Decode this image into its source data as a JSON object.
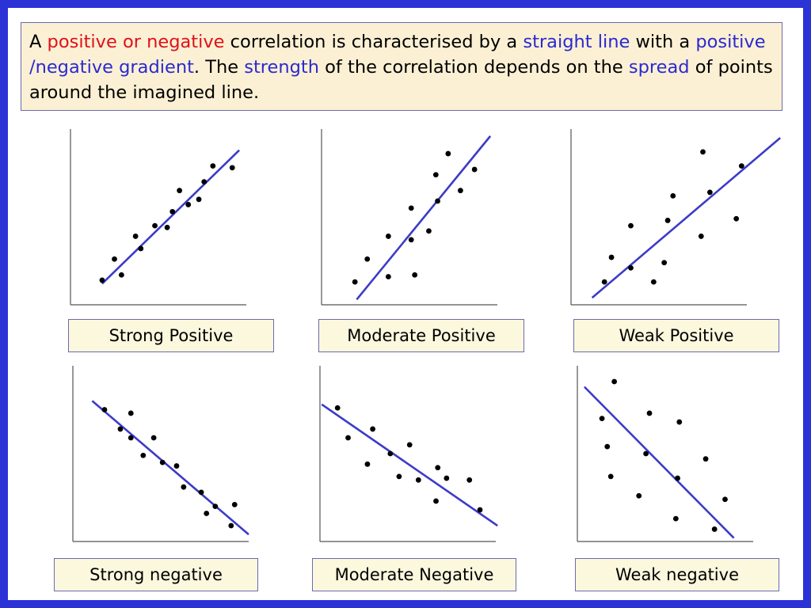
{
  "intro": {
    "p1": "A ",
    "k1": "positive or negative",
    "p2": " correlation is characterised by a ",
    "k2": "straight line",
    "p3": " with a ",
    "k3": "positive /negative gradient",
    "p4": ". The ",
    "k4": "strength",
    "p5": " of the correlation depends on the ",
    "k5": "spread",
    "p6": " of points around the imagined line."
  },
  "colors": {
    "frame": "#2b33d6",
    "line": "#3b3bc8",
    "keyword_red": "#e0101a",
    "keyword_blue": "#2a2ad0",
    "text_box": "#fbf0d4",
    "label_box": "#fbf8de"
  },
  "chart_data": [
    {
      "type": "scatter",
      "label": "Strong Positive",
      "trend": "positive",
      "strength": "strong",
      "x": [
        0.18,
        0.25,
        0.29,
        0.37,
        0.4,
        0.48,
        0.55,
        0.58,
        0.62,
        0.67,
        0.73,
        0.76,
        0.81,
        0.92
      ],
      "y": [
        0.14,
        0.26,
        0.17,
        0.39,
        0.32,
        0.45,
        0.44,
        0.53,
        0.65,
        0.57,
        0.6,
        0.7,
        0.79,
        0.78
      ]
    },
    {
      "type": "scatter",
      "label": "Moderate Positive",
      "trend": "positive",
      "strength": "moderate",
      "x": [
        0.19,
        0.26,
        0.38,
        0.38,
        0.51,
        0.51,
        0.53,
        0.61,
        0.65,
        0.66,
        0.72,
        0.79,
        0.87
      ],
      "y": [
        0.13,
        0.26,
        0.16,
        0.39,
        0.37,
        0.55,
        0.17,
        0.42,
        0.74,
        0.59,
        0.86,
        0.65,
        0.77
      ]
    },
    {
      "type": "scatter",
      "label": "Weak Positive",
      "trend": "positive",
      "strength": "weak",
      "x": [
        0.19,
        0.23,
        0.34,
        0.34,
        0.47,
        0.53,
        0.55,
        0.58,
        0.74,
        0.75,
        0.79,
        0.94,
        0.97
      ],
      "y": [
        0.13,
        0.27,
        0.21,
        0.45,
        0.13,
        0.24,
        0.48,
        0.62,
        0.39,
        0.87,
        0.64,
        0.49,
        0.79
      ]
    },
    {
      "type": "scatter",
      "label": "Strong negative",
      "trend": "negative",
      "strength": "strong",
      "x": [
        0.18,
        0.27,
        0.33,
        0.33,
        0.4,
        0.46,
        0.51,
        0.59,
        0.63,
        0.73,
        0.76,
        0.81,
        0.9,
        0.92
      ],
      "y": [
        0.75,
        0.64,
        0.73,
        0.59,
        0.49,
        0.59,
        0.45,
        0.43,
        0.31,
        0.28,
        0.16,
        0.2,
        0.09,
        0.21
      ]
    },
    {
      "type": "scatter",
      "label": "Moderate Negative",
      "trend": "negative",
      "strength": "moderate",
      "x": [
        0.1,
        0.16,
        0.27,
        0.3,
        0.4,
        0.45,
        0.51,
        0.56,
        0.66,
        0.67,
        0.72,
        0.85,
        0.91
      ],
      "y": [
        0.76,
        0.59,
        0.44,
        0.64,
        0.5,
        0.37,
        0.55,
        0.35,
        0.23,
        0.42,
        0.36,
        0.35,
        0.18
      ]
    },
    {
      "type": "scatter",
      "label": "Weak negative",
      "trend": "negative",
      "strength": "weak",
      "x": [
        0.14,
        0.17,
        0.19,
        0.21,
        0.35,
        0.39,
        0.41,
        0.56,
        0.57,
        0.58,
        0.73,
        0.78,
        0.84
      ],
      "y": [
        0.7,
        0.54,
        0.37,
        0.91,
        0.26,
        0.5,
        0.73,
        0.13,
        0.36,
        0.68,
        0.47,
        0.07,
        0.24
      ]
    }
  ]
}
